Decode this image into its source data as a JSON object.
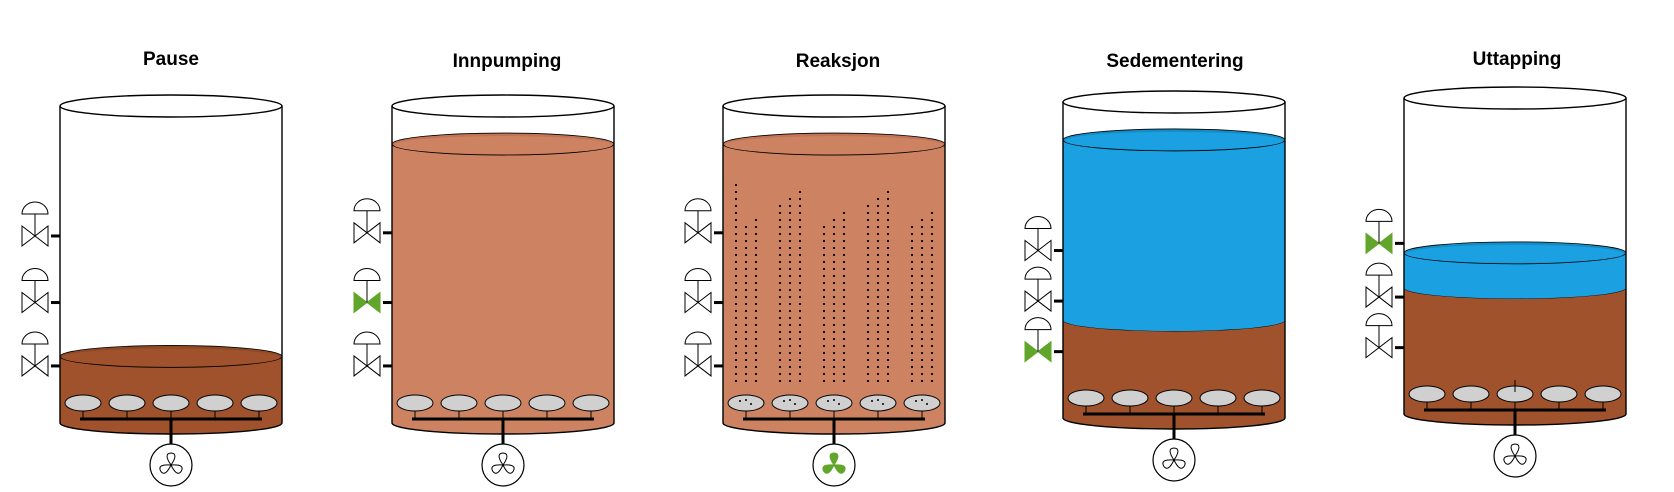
{
  "colors": {
    "sludge": "#a0522d",
    "sludge_top": "#8e4a25",
    "mixed": "#cd8362",
    "mixed_top": "#c07355",
    "water": "#1ba1e2",
    "water_top": "#168cc7",
    "valve_open": "#62a52b",
    "diffuser": "#d0d0d0",
    "outline": "#000000"
  },
  "stages": [
    {
      "title": "Pause",
      "layers": [
        {
          "kind": "sludge",
          "fill_fraction": 0.21
        }
      ],
      "valves": [
        {
          "position": "top",
          "state": "closed"
        },
        {
          "position": "middle",
          "state": "closed"
        },
        {
          "position": "bottom",
          "state": "closed"
        }
      ],
      "aeration": false,
      "blower": "off-icon"
    },
    {
      "title": "Innpumping",
      "layers": [
        {
          "kind": "mixed",
          "fill_fraction": 0.88
        }
      ],
      "valves": [
        {
          "position": "top",
          "state": "closed"
        },
        {
          "position": "middle",
          "state": "open"
        },
        {
          "position": "bottom",
          "state": "closed"
        }
      ],
      "aeration": false,
      "blower": "off-icon"
    },
    {
      "title": "Reaksjon",
      "layers": [
        {
          "kind": "mixed",
          "fill_fraction": 0.88
        }
      ],
      "valves": [
        {
          "position": "top",
          "state": "closed"
        },
        {
          "position": "middle",
          "state": "closed"
        },
        {
          "position": "bottom",
          "state": "closed"
        }
      ],
      "aeration": true,
      "blower": "on-icon"
    },
    {
      "title": "Sedementering",
      "layers": [
        {
          "kind": "sludge",
          "fill_fraction": 0.31
        },
        {
          "kind": "water",
          "fill_fraction": 0.57
        }
      ],
      "valves": [
        {
          "position": "top",
          "state": "closed"
        },
        {
          "position": "middle",
          "state": "closed"
        },
        {
          "position": "bottom",
          "state": "open"
        }
      ],
      "aeration": false,
      "blower": "off-icon"
    },
    {
      "title": "Uttapping",
      "layers": [
        {
          "kind": "sludge",
          "fill_fraction": 0.4
        },
        {
          "kind": "water",
          "fill_fraction": 0.11
        }
      ],
      "valves": [
        {
          "position": "top",
          "state": "open"
        },
        {
          "position": "middle",
          "state": "closed"
        },
        {
          "position": "bottom",
          "state": "closed"
        }
      ],
      "aeration": false,
      "blower": "off-icon"
    }
  ]
}
